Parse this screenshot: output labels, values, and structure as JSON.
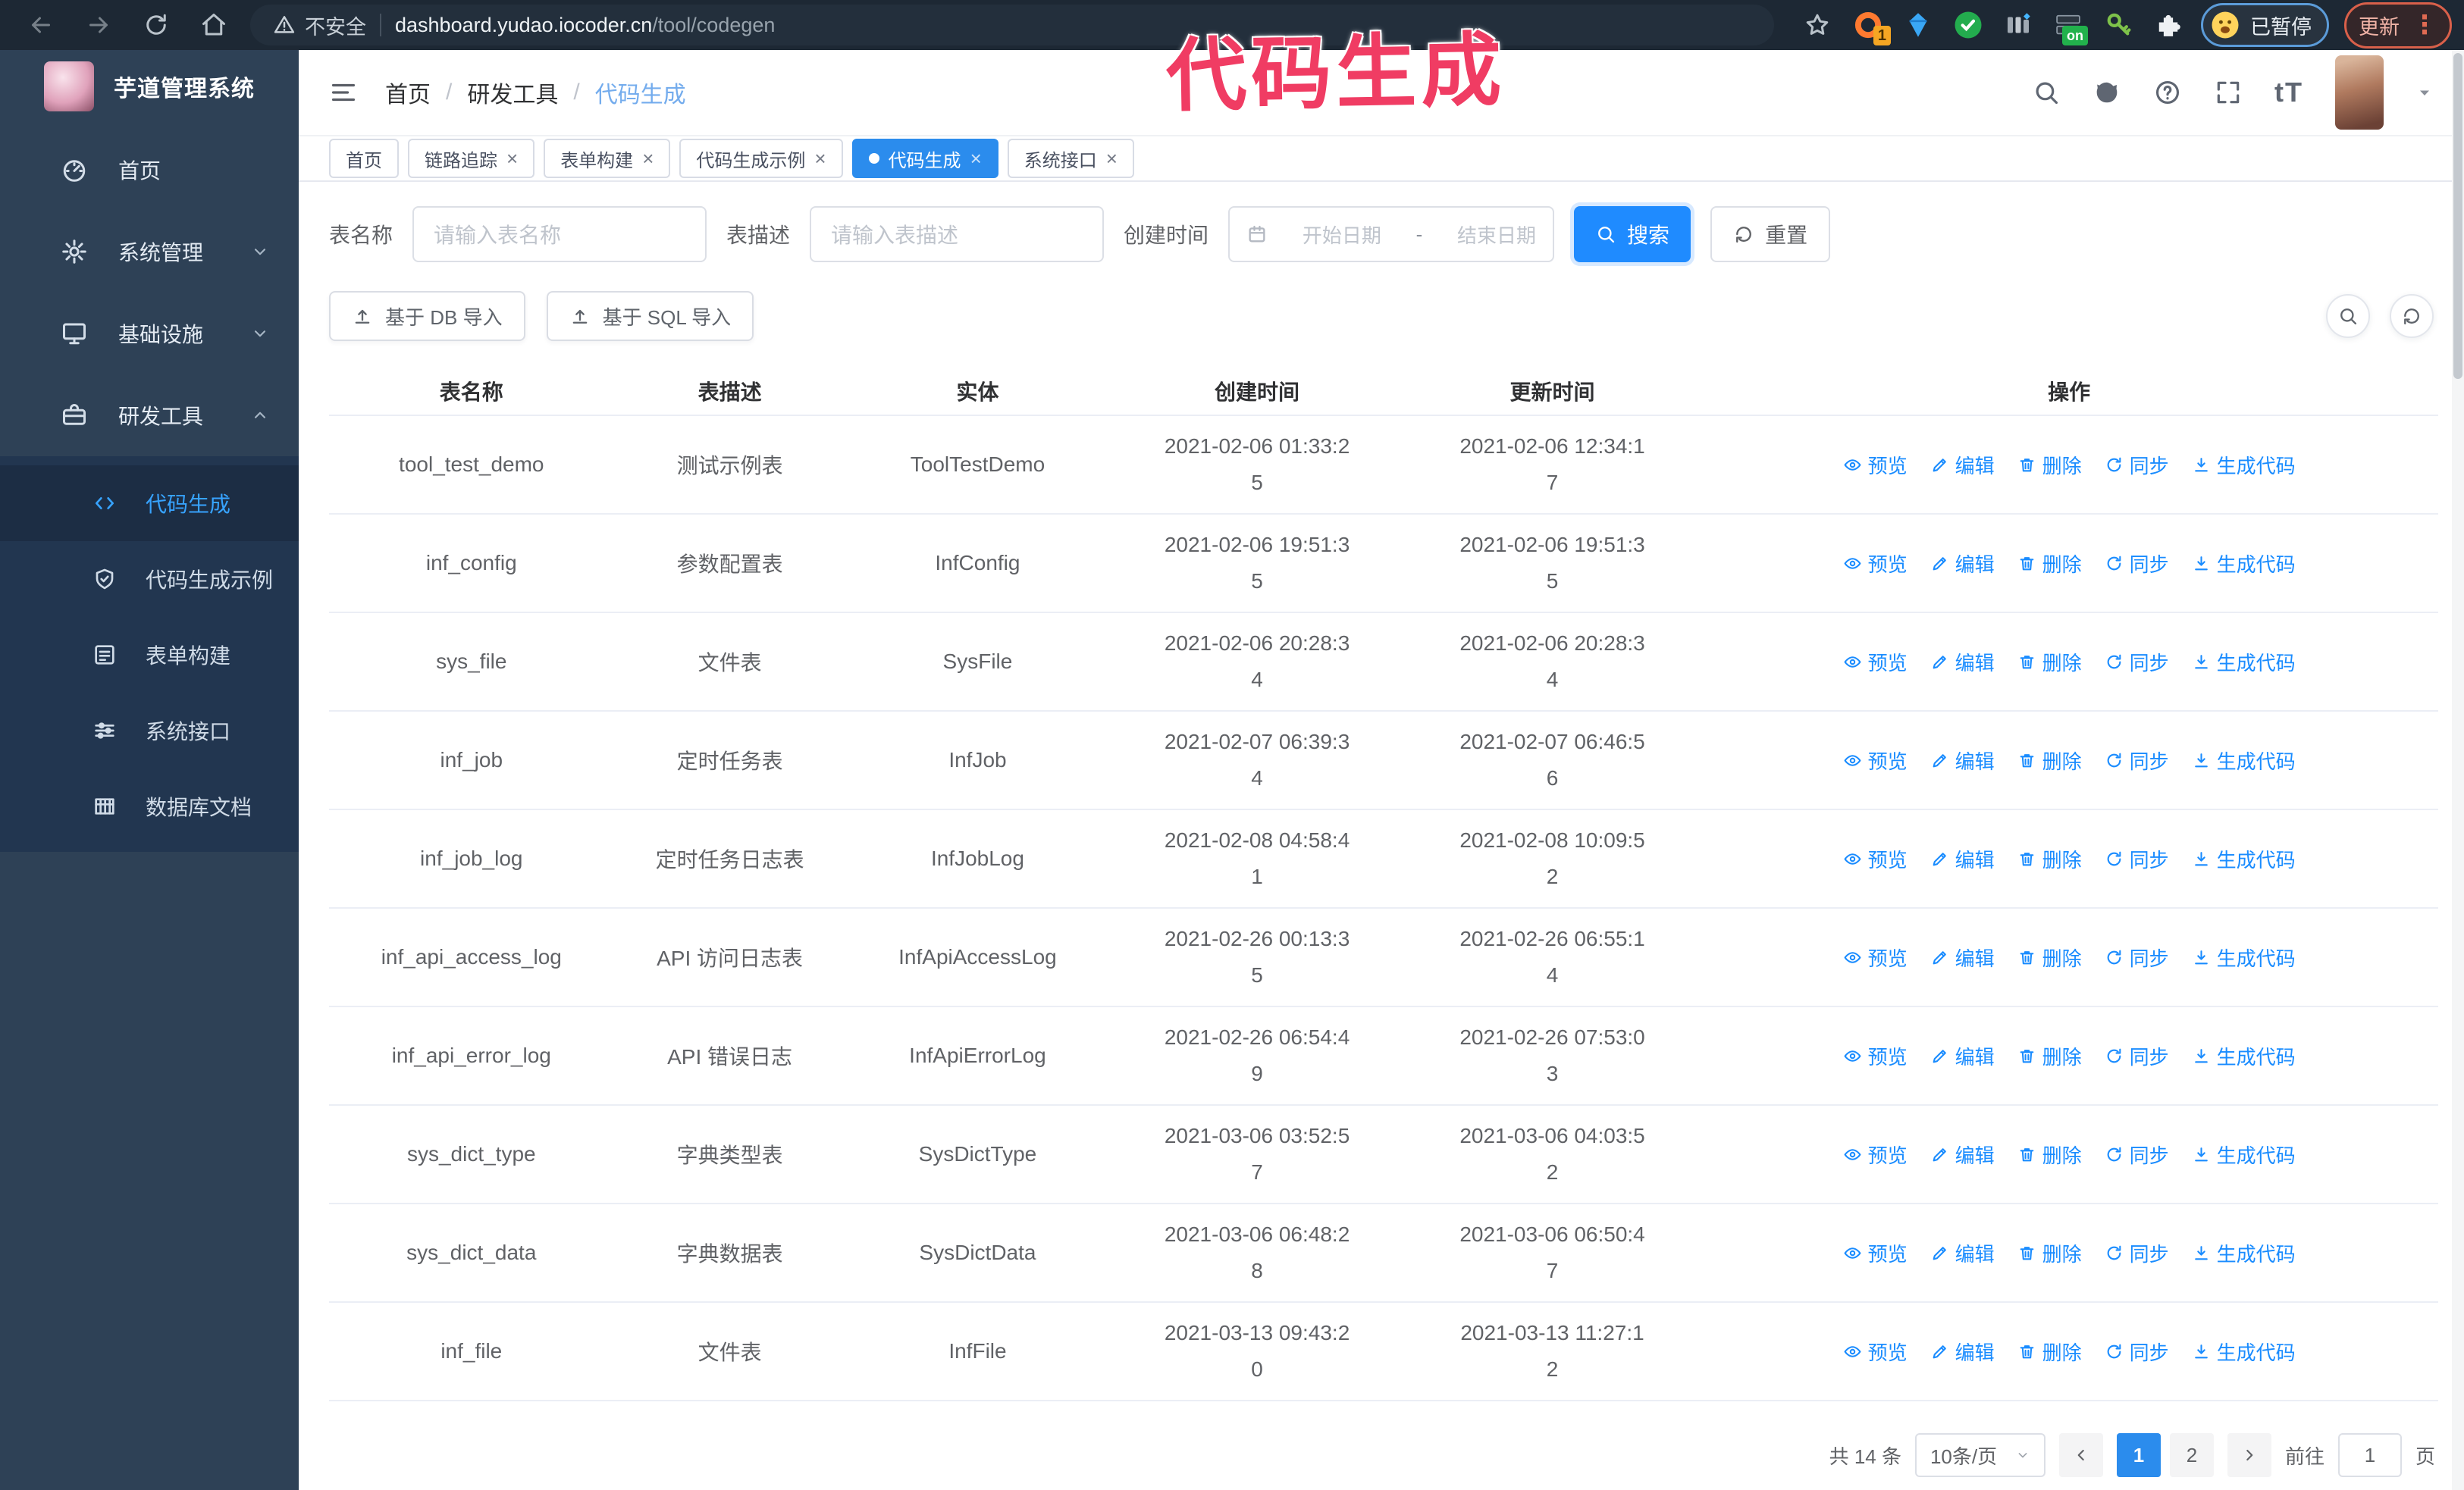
{
  "annotation": {
    "text": "代码生成"
  },
  "browser": {
    "security_label": "不安全",
    "url_host": "dashboard.yudao.iocoder.cn",
    "url_path": "/tool/codegen",
    "ext_badge_count": "1",
    "ext_badge_on": "on",
    "profile_status": "已暂停",
    "update_label": "更新"
  },
  "sidebar": {
    "title": "芋道管理系统",
    "items": [
      {
        "label": "首页",
        "icon": "dashboard-icon"
      },
      {
        "label": "系统管理",
        "icon": "gear-icon",
        "chev": "chevron-down-icon"
      },
      {
        "label": "基础设施",
        "icon": "infra-icon",
        "chev": "chevron-down-icon"
      },
      {
        "label": "研发工具",
        "icon": "toolbox-icon",
        "chev": "chevron-up-icon"
      }
    ],
    "submenu": [
      {
        "label": "代码生成",
        "icon": "code-icon",
        "active": true
      },
      {
        "label": "代码生成示例",
        "icon": "badge-check-icon"
      },
      {
        "label": "表单构建",
        "icon": "form-icon"
      },
      {
        "label": "系统接口",
        "icon": "sliders-icon"
      },
      {
        "label": "数据库文档",
        "icon": "database-doc-icon"
      }
    ]
  },
  "header": {
    "breadcrumb": [
      "首页",
      "研发工具",
      "代码生成"
    ],
    "separator": "/"
  },
  "tabs": [
    {
      "label": "首页"
    },
    {
      "label": "链路追踪",
      "closable": true
    },
    {
      "label": "表单构建",
      "closable": true
    },
    {
      "label": "代码生成示例",
      "closable": true
    },
    {
      "label": "代码生成",
      "closable": true,
      "active": true
    },
    {
      "label": "系统接口",
      "closable": true
    }
  ],
  "search": {
    "name_label": "表名称",
    "name_placeholder": "请输入表名称",
    "desc_label": "表描述",
    "desc_placeholder": "请输入表描述",
    "time_label": "创建时间",
    "start_placeholder": "开始日期",
    "range_separator": "-",
    "end_placeholder": "结束日期",
    "search_label": "搜索",
    "reset_label": "重置"
  },
  "import_buttons": {
    "db_label": "基于 DB 导入",
    "sql_label": "基于 SQL 导入"
  },
  "table": {
    "columns": [
      "表名称",
      "表描述",
      "实体",
      "创建时间",
      "更新时间",
      "操作"
    ],
    "actions": [
      {
        "label": "预览",
        "icon": "eye-icon"
      },
      {
        "label": "编辑",
        "icon": "edit-icon"
      },
      {
        "label": "删除",
        "icon": "delete-icon"
      },
      {
        "label": "同步",
        "icon": "sync-icon"
      },
      {
        "label": "生成代码",
        "icon": "download-icon"
      }
    ],
    "rows": [
      {
        "name": "tool_test_demo",
        "desc": "测试示例表",
        "entity": "ToolTestDemo",
        "created": "2021-02-06 01:33:25",
        "updated": "2021-02-06 12:34:17"
      },
      {
        "name": "inf_config",
        "desc": "参数配置表",
        "entity": "InfConfig",
        "created": "2021-02-06 19:51:35",
        "updated": "2021-02-06 19:51:35"
      },
      {
        "name": "sys_file",
        "desc": "文件表",
        "entity": "SysFile",
        "created": "2021-02-06 20:28:34",
        "updated": "2021-02-06 20:28:34"
      },
      {
        "name": "inf_job",
        "desc": "定时任务表",
        "entity": "InfJob",
        "created": "2021-02-07 06:39:34",
        "updated": "2021-02-07 06:46:56"
      },
      {
        "name": "inf_job_log",
        "desc": "定时任务日志表",
        "entity": "InfJobLog",
        "created": "2021-02-08 04:58:41",
        "updated": "2021-02-08 10:09:52"
      },
      {
        "name": "inf_api_access_log",
        "desc": "API 访问日志表",
        "entity": "InfApiAccessLog",
        "created": "2021-02-26 00:13:35",
        "updated": "2021-02-26 06:55:14"
      },
      {
        "name": "inf_api_error_log",
        "desc": "API 错误日志",
        "entity": "InfApiErrorLog",
        "created": "2021-02-26 06:54:49",
        "updated": "2021-02-26 07:53:03"
      },
      {
        "name": "sys_dict_type",
        "desc": "字典类型表",
        "entity": "SysDictType",
        "created": "2021-03-06 03:52:57",
        "updated": "2021-03-06 04:03:52"
      },
      {
        "name": "sys_dict_data",
        "desc": "字典数据表",
        "entity": "SysDictData",
        "created": "2021-03-06 06:48:28",
        "updated": "2021-03-06 06:50:47"
      },
      {
        "name": "inf_file",
        "desc": "文件表",
        "entity": "InfFile",
        "created": "2021-03-13 09:43:20",
        "updated": "2021-03-13 11:27:12"
      }
    ]
  },
  "pagination": {
    "total": "共 14 条",
    "page_size": "10条/页",
    "pages": [
      {
        "label": "1",
        "active": true
      },
      {
        "label": "2"
      }
    ],
    "goto_label": "前往",
    "goto_value": "1",
    "goto_unit": "页"
  },
  "colors": {
    "accent_blue": "#2b8ced",
    "link_blue": "#1a8cff",
    "active_menu_blue": "#37a3ff",
    "sidebar_bg": "#2e4156",
    "submenu_bg": "#223650",
    "browser_bar_bg": "#1d2834",
    "annotation_pink": "#f03c63",
    "update_red": "#d9604a",
    "profile_ring_blue": "#5b9bd8"
  }
}
